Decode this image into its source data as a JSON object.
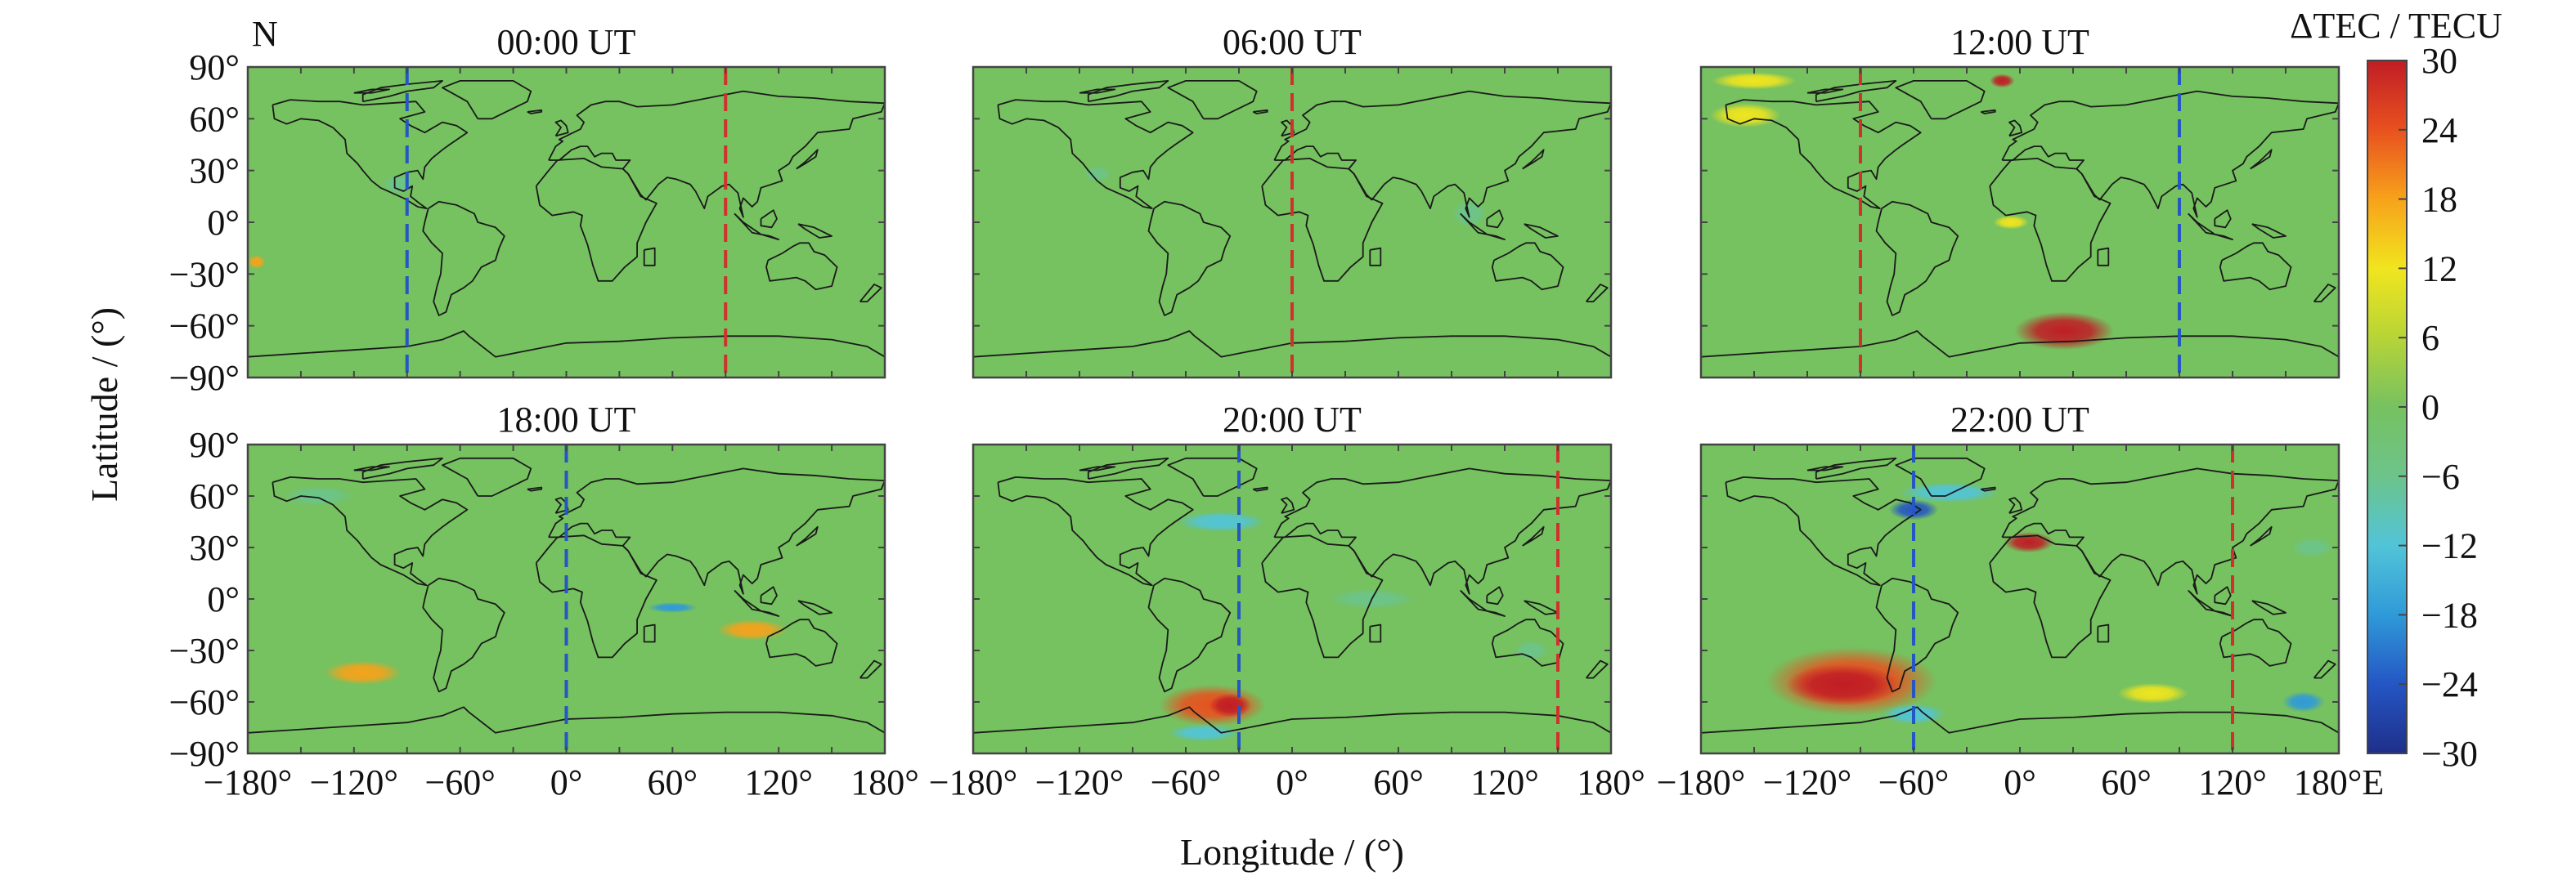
{
  "figure": {
    "north_label": "N",
    "ylabel": "Latitude / (°)",
    "xlabel": "Longitude / (°)",
    "colorbar": {
      "title": "ΔTEC / TECU",
      "ticks": [
        "30",
        "24",
        "18",
        "12",
        "6",
        "0",
        "−6",
        "−12",
        "−18",
        "−24",
        "−30"
      ],
      "colors": [
        "#1f2f8a",
        "#2456c4",
        "#2f9ad8",
        "#52c4d8",
        "#6cc48a",
        "#76c160",
        "#b7d437",
        "#f1e51e",
        "#f7a21b",
        "#e8511f",
        "#c01d25"
      ]
    },
    "x_ticks": [
      "−180°",
      "−120°",
      "−60°",
      "0°",
      "60°",
      "120°",
      "180°"
    ],
    "x_ticks_last_panel": [
      "−180°",
      "−120°",
      "−60°",
      "0°",
      "60°",
      "120°",
      "180°E"
    ],
    "y_ticks": [
      "90°",
      "60°",
      "30°",
      "0°",
      "−30°",
      "−60°",
      "−90°"
    ],
    "background_color": "#76c160",
    "coast_color": "#1a1a1a"
  },
  "chart_data": [
    {
      "type": "heatmap",
      "title": "00:00 UT",
      "xlim": [
        -180,
        180
      ],
      "ylim": [
        -90,
        90
      ],
      "value_range": [
        -30,
        30
      ],
      "lines": [
        {
          "lon": -90,
          "color": "#2456c4"
        },
        {
          "lon": 90,
          "color": "#d0312d"
        }
      ],
      "anomalies": [
        {
          "lon": -175,
          "lat": -23,
          "rx": 5,
          "ry": 4,
          "value": 16
        },
        {
          "lon": -95,
          "lat": 22,
          "rx": 9,
          "ry": 6,
          "value": -8
        }
      ]
    },
    {
      "type": "heatmap",
      "title": "06:00 UT",
      "xlim": [
        -180,
        180
      ],
      "ylim": [
        -90,
        90
      ],
      "value_range": [
        -30,
        30
      ],
      "lines": [
        {
          "lon": 0,
          "color": "#d0312d"
        }
      ],
      "anomalies": [
        {
          "lon": -110,
          "lat": 28,
          "rx": 8,
          "ry": 5,
          "value": -7
        },
        {
          "lon": 100,
          "lat": 5,
          "rx": 10,
          "ry": 8,
          "value": -6
        }
      ]
    },
    {
      "type": "heatmap",
      "title": "12:00 UT",
      "xlim": [
        -180,
        180
      ],
      "ylim": [
        -90,
        90
      ],
      "value_range": [
        -30,
        30
      ],
      "lines": [
        {
          "lon": -90,
          "color": "#d0312d"
        },
        {
          "lon": 90,
          "color": "#2456c4"
        }
      ],
      "anomalies": [
        {
          "lon": 25,
          "lat": -63,
          "rx": 28,
          "ry": 11,
          "value": 30
        },
        {
          "lon": -10,
          "lat": 82,
          "rx": 7,
          "ry": 4,
          "value": 28
        },
        {
          "lon": -150,
          "lat": 82,
          "rx": 24,
          "ry": 5,
          "value": 12
        },
        {
          "lon": -155,
          "lat": 62,
          "rx": 20,
          "ry": 7,
          "value": 10
        },
        {
          "lon": -5,
          "lat": 0,
          "rx": 10,
          "ry": 4,
          "value": 10
        }
      ]
    },
    {
      "type": "heatmap",
      "title": "18:00 UT",
      "xlim": [
        -180,
        180
      ],
      "ylim": [
        -90,
        90
      ],
      "value_range": [
        -30,
        30
      ],
      "lines": [
        {
          "lon": 0,
          "color": "#2456c4"
        }
      ],
      "anomalies": [
        {
          "lon": -115,
          "lat": -43,
          "rx": 22,
          "ry": 7,
          "value": 20
        },
        {
          "lon": 105,
          "lat": -18,
          "rx": 20,
          "ry": 6,
          "value": 16
        },
        {
          "lon": 60,
          "lat": -5,
          "rx": 14,
          "ry": 3,
          "value": -18
        },
        {
          "lon": -140,
          "lat": 60,
          "rx": 20,
          "ry": 6,
          "value": -7
        }
      ]
    },
    {
      "type": "heatmap",
      "title": "20:00 UT",
      "xlim": [
        -180,
        180
      ],
      "ylim": [
        -90,
        90
      ],
      "value_range": [
        -30,
        30
      ],
      "lines": [
        {
          "lon": -30,
          "color": "#2456c4"
        },
        {
          "lon": 150,
          "color": "#d0312d"
        }
      ],
      "anomalies": [
        {
          "lon": -45,
          "lat": -62,
          "rx": 30,
          "ry": 12,
          "value": 24
        },
        {
          "lon": -35,
          "lat": -62,
          "rx": 12,
          "ry": 7,
          "value": 30
        },
        {
          "lon": -50,
          "lat": -78,
          "rx": 20,
          "ry": 5,
          "value": -12
        },
        {
          "lon": -40,
          "lat": 45,
          "rx": 25,
          "ry": 6,
          "value": -10
        },
        {
          "lon": 45,
          "lat": 0,
          "rx": 25,
          "ry": 6,
          "value": -9
        },
        {
          "lon": 135,
          "lat": -30,
          "rx": 10,
          "ry": 6,
          "value": -8
        }
      ]
    },
    {
      "type": "heatmap",
      "title": "22:00 UT",
      "xlim": [
        -180,
        180
      ],
      "ylim": [
        -90,
        90
      ],
      "value_range": [
        -30,
        30
      ],
      "lines": [
        {
          "lon": -60,
          "color": "#2456c4"
        },
        {
          "lon": 120,
          "color": "#d0312d"
        }
      ],
      "anomalies": [
        {
          "lon": -95,
          "lat": -48,
          "rx": 48,
          "ry": 20,
          "value": 24
        },
        {
          "lon": -100,
          "lat": -50,
          "rx": 32,
          "ry": 12,
          "value": 30
        },
        {
          "lon": -60,
          "lat": -67,
          "rx": 18,
          "ry": 6,
          "value": -14
        },
        {
          "lon": 5,
          "lat": 33,
          "rx": 14,
          "ry": 6,
          "value": 30
        },
        {
          "lon": -60,
          "lat": 52,
          "rx": 14,
          "ry": 6,
          "value": -22
        },
        {
          "lon": -40,
          "lat": 62,
          "rx": 28,
          "ry": 6,
          "value": -10
        },
        {
          "lon": 75,
          "lat": -55,
          "rx": 20,
          "ry": 6,
          "value": 10
        },
        {
          "lon": 160,
          "lat": -60,
          "rx": 12,
          "ry": 6,
          "value": -18
        },
        {
          "lon": 165,
          "lat": 30,
          "rx": 12,
          "ry": 6,
          "value": -7
        }
      ]
    }
  ]
}
